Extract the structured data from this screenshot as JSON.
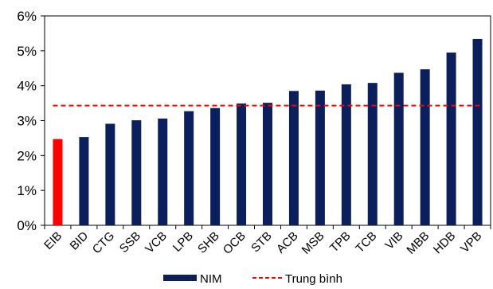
{
  "chart_data": {
    "type": "bar",
    "categories": [
      "EIB",
      "BID",
      "CTG",
      "SSB",
      "VCB",
      "LPB",
      "SHB",
      "OCB",
      "STB",
      "ACB",
      "MSB",
      "TPB",
      "TCB",
      "VIB",
      "MBB",
      "HDB",
      "VPB"
    ],
    "series": [
      {
        "name": "NIM",
        "values": [
          2.47,
          2.53,
          2.91,
          3.01,
          3.06,
          3.27,
          3.36,
          3.49,
          3.51,
          3.85,
          3.86,
          4.04,
          4.08,
          4.37,
          4.47,
          4.95,
          5.34
        ],
        "color": "#0a1f5c",
        "highlight": {
          "category": "EIB",
          "color": "#ff0000"
        }
      },
      {
        "name": "Trung bình",
        "type": "line",
        "style": "dashed",
        "values": [
          3.43,
          3.43,
          3.43,
          3.43,
          3.43,
          3.43,
          3.43,
          3.43,
          3.43,
          3.43,
          3.43,
          3.43,
          3.43,
          3.43,
          3.43,
          3.43,
          3.43
        ],
        "color": "#ff0000"
      }
    ],
    "ylim": [
      0,
      6
    ],
    "yticks": [
      "0%",
      "1%",
      "2%",
      "3%",
      "4%",
      "5%",
      "6%"
    ],
    "grid": false,
    "legend_position": "bottom"
  }
}
